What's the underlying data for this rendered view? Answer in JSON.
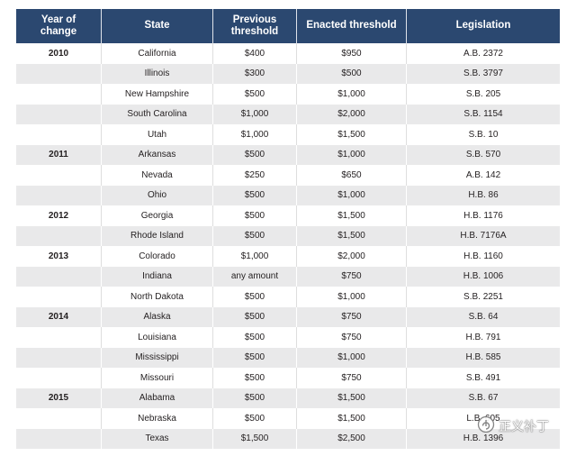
{
  "colors": {
    "header_bg": "#2b4870",
    "header_text": "#ffffff",
    "stripe": "#e9e9ea"
  },
  "chart_data": {
    "type": "table",
    "columns": [
      "Year of change",
      "State",
      "Previous threshold",
      "Enacted threshold",
      "Legislation"
    ],
    "rows": [
      {
        "year": "2010",
        "state": "California",
        "previous": "$400",
        "enacted": "$950",
        "legislation": "A.B. 2372"
      },
      {
        "year": "",
        "state": "Illinois",
        "previous": "$300",
        "enacted": "$500",
        "legislation": "S.B. 3797"
      },
      {
        "year": "",
        "state": "New Hampshire",
        "previous": "$500",
        "enacted": "$1,000",
        "legislation": "S.B. 205"
      },
      {
        "year": "",
        "state": "South Carolina",
        "previous": "$1,000",
        "enacted": "$2,000",
        "legislation": "S.B. 1154"
      },
      {
        "year": "",
        "state": "Utah",
        "previous": "$1,000",
        "enacted": "$1,500",
        "legislation": "S.B. 10"
      },
      {
        "year": "2011",
        "state": "Arkansas",
        "previous": "$500",
        "enacted": "$1,000",
        "legislation": "S.B. 570"
      },
      {
        "year": "",
        "state": "Nevada",
        "previous": "$250",
        "enacted": "$650",
        "legislation": "A.B. 142"
      },
      {
        "year": "",
        "state": "Ohio",
        "previous": "$500",
        "enacted": "$1,000",
        "legislation": "H.B. 86"
      },
      {
        "year": "2012",
        "state": "Georgia",
        "previous": "$500",
        "enacted": "$1,500",
        "legislation": "H.B. 1176"
      },
      {
        "year": "",
        "state": "Rhode Island",
        "previous": "$500",
        "enacted": "$1,500",
        "legislation": "H.B. 7176A"
      },
      {
        "year": "2013",
        "state": "Colorado",
        "previous": "$1,000",
        "enacted": "$2,000",
        "legislation": "H.B. 1160"
      },
      {
        "year": "",
        "state": "Indiana",
        "previous": "any amount",
        "enacted": "$750",
        "legislation": "H.B. 1006"
      },
      {
        "year": "",
        "state": "North Dakota",
        "previous": "$500",
        "enacted": "$1,000",
        "legislation": "S.B. 2251"
      },
      {
        "year": "2014",
        "state": "Alaska",
        "previous": "$500",
        "enacted": "$750",
        "legislation": "S.B. 64"
      },
      {
        "year": "",
        "state": "Louisiana",
        "previous": "$500",
        "enacted": "$750",
        "legislation": "H.B. 791"
      },
      {
        "year": "",
        "state": "Mississippi",
        "previous": "$500",
        "enacted": "$1,000",
        "legislation": "H.B. 585"
      },
      {
        "year": "",
        "state": "Missouri",
        "previous": "$500",
        "enacted": "$750",
        "legislation": "S.B. 491"
      },
      {
        "year": "2015",
        "state": "Alabama",
        "previous": "$500",
        "enacted": "$1,500",
        "legislation": "S.B. 67"
      },
      {
        "year": "",
        "state": "Nebraska",
        "previous": "$500",
        "enacted": "$1,500",
        "legislation": "L.B. 605"
      },
      {
        "year": "",
        "state": "Texas",
        "previous": "$1,500",
        "enacted": "$2,500",
        "legislation": "H.B. 1396"
      }
    ]
  },
  "watermark": {
    "icon": "wechat-account-icon",
    "text": "正义补丁"
  }
}
